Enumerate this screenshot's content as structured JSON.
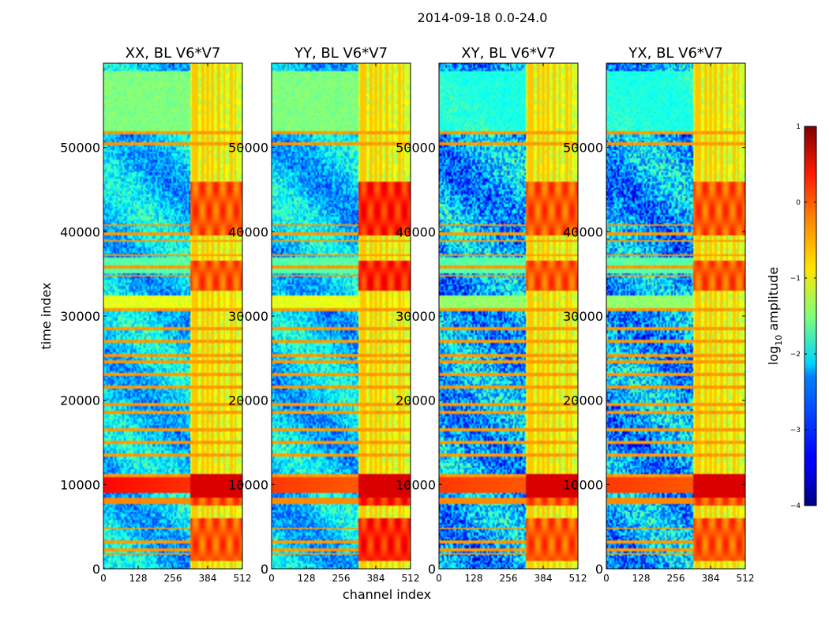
{
  "chart_data": {
    "type": "heatmap",
    "title": "2014-09-18 0.0-24.0",
    "xlabel": "channel index",
    "ylabel": "time index",
    "xlim": [
      0,
      512
    ],
    "ylim": [
      0,
      60000
    ],
    "x_ticks": [
      0,
      128,
      256,
      384,
      512
    ],
    "y_ticks": [
      0,
      10000,
      20000,
      30000,
      40000,
      50000
    ],
    "panels": [
      {
        "title": "XX, BL V6*V7",
        "pol": "XX"
      },
      {
        "title": "YY, BL V6*V7",
        "pol": "YY"
      },
      {
        "title": "XY, BL V6*V7",
        "pol": "XY"
      },
      {
        "title": "YX, BL V6*V7",
        "pol": "YX"
      }
    ],
    "colorbar": {
      "label_prefix": "log",
      "label_subscript": "10",
      "label_suffix": " amplitude",
      "range": [
        -4,
        1
      ],
      "ticks": [
        -4,
        -3,
        -2,
        -1,
        0,
        1
      ],
      "tick_labels": [
        "−4",
        "−3",
        "−2",
        "−1",
        "0",
        "1"
      ],
      "colormap": "jet"
    },
    "features": {
      "rfi_channel_band": [
        320,
        512
      ],
      "strong_channel_columns": [
        330,
        345,
        365,
        385,
        400,
        425,
        445,
        470,
        485
      ],
      "flagged_time_rows": [
        1800,
        2300,
        3200,
        4800,
        8100,
        9900,
        11000,
        13500,
        15000,
        16500,
        18500,
        19500,
        21600,
        23000,
        24500,
        25300,
        27000,
        28500,
        30700,
        34800,
        35800,
        37200,
        38900,
        39800,
        40800,
        50400,
        51800
      ],
      "bright_time_bands": [
        {
          "from": 30500,
          "to": 32500,
          "level": -1.0
        },
        {
          "from": 35000,
          "to": 37000,
          "level": -1.7
        },
        {
          "from": 52000,
          "to": 59000,
          "level": -1.5
        }
      ],
      "hot_time_band": [
        7500,
        11200
      ],
      "hot_patch_time_ranges": [
        [
          39500,
          46000
        ],
        [
          33000,
          36500
        ],
        [
          7500,
          11200
        ],
        [
          1000,
          6000
        ]
      ]
    }
  }
}
